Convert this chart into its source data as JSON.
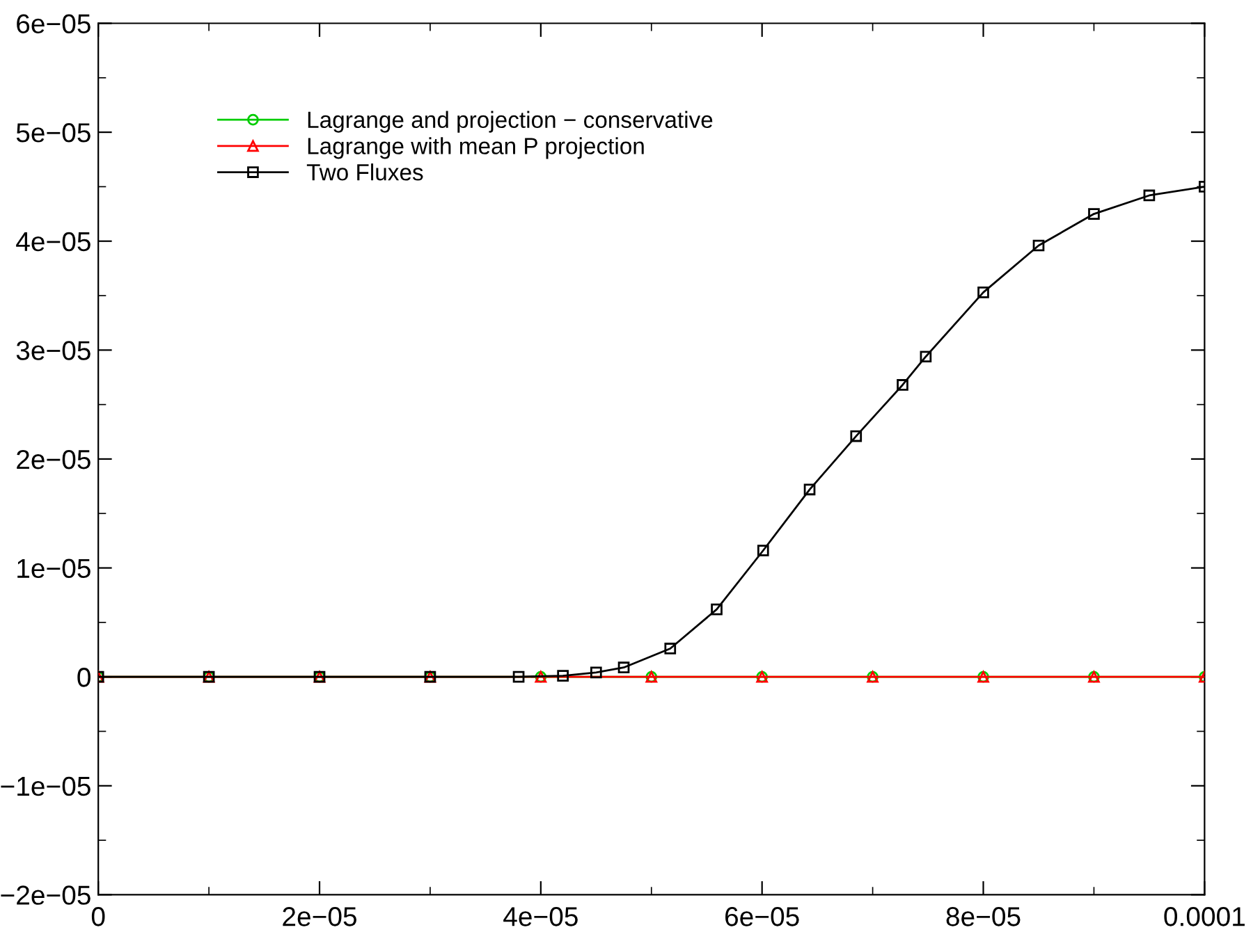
{
  "chart_data": {
    "type": "line",
    "xlim": [
      0,
      0.0001
    ],
    "ylim": [
      -2e-05,
      6e-05
    ],
    "xticks": [
      {
        "value": 0,
        "label": "0"
      },
      {
        "value": 2e-05,
        "label": "2e−05"
      },
      {
        "value": 4e-05,
        "label": "4e−05"
      },
      {
        "value": 6e-05,
        "label": "6e−05"
      },
      {
        "value": 8e-05,
        "label": "8e−05"
      },
      {
        "value": 0.0001,
        "label": "0.0001"
      }
    ],
    "yticks": [
      {
        "value": -2e-05,
        "label": "−2e−05"
      },
      {
        "value": -1e-05,
        "label": "−1e−05"
      },
      {
        "value": 0,
        "label": "0"
      },
      {
        "value": 1e-05,
        "label": "1e−05"
      },
      {
        "value": 2e-05,
        "label": "2e−05"
      },
      {
        "value": 3e-05,
        "label": "3e−05"
      },
      {
        "value": 4e-05,
        "label": "4e−05"
      },
      {
        "value": 5e-05,
        "label": "5e−05"
      },
      {
        "value": 6e-05,
        "label": "6e−05"
      }
    ],
    "grid": false,
    "legend": "top left",
    "line_style": "solid",
    "series": [
      {
        "name": "Lagrange and projection − conservative",
        "color": "#00cc00",
        "marker": "circle",
        "x": [
          0,
          1e-05,
          2e-05,
          3e-05,
          4e-05,
          5e-05,
          6e-05,
          7e-05,
          8e-05,
          9e-05,
          0.0001
        ],
        "values": [
          0,
          0,
          0,
          0,
          0,
          0,
          0,
          0,
          0,
          0,
          0
        ]
      },
      {
        "name": "Lagrange with mean P projection",
        "color": "#ff0000",
        "marker": "triangle",
        "x": [
          0,
          1e-05,
          2e-05,
          3e-05,
          4e-05,
          5e-05,
          6e-05,
          7e-05,
          8e-05,
          9e-05,
          0.0001
        ],
        "values": [
          0,
          0,
          0,
          0,
          0,
          0,
          0,
          0,
          0,
          0,
          0
        ]
      },
      {
        "name": "Two Fluxes",
        "color": "#000000",
        "marker": "square",
        "x": [
          0,
          1e-05,
          2e-05,
          3e-05,
          3.8e-05,
          4.2e-05,
          4.5e-05,
          4.75e-05,
          5.17e-05,
          5.59e-05,
          6.01e-05,
          6.43e-05,
          6.85e-05,
          7.27e-05,
          7.48e-05,
          8e-05,
          8.5e-05,
          9e-05,
          9.5e-05,
          0.0001
        ],
        "values": [
          0,
          0,
          0,
          0,
          0,
          1e-07,
          4e-07,
          8.6e-07,
          2.6e-06,
          6.2e-06,
          1.16e-05,
          1.72e-05,
          2.21e-05,
          2.68e-05,
          2.94e-05,
          3.53e-05,
          3.96e-05,
          4.25e-05,
          4.42e-05,
          4.5e-05
        ]
      }
    ]
  }
}
